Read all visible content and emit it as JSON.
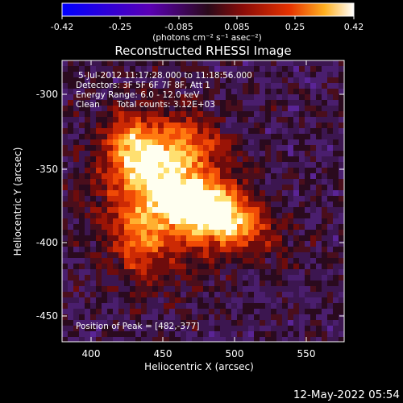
{
  "colorbar": {
    "ticks": [
      "-0.42",
      "-0.25",
      "-0.085",
      "0.085",
      "0.25",
      "0.42"
    ],
    "units": "(photons cm⁻² s⁻¹ asec⁻²)"
  },
  "title": "Reconstructed RHESSI Image",
  "annotations": {
    "time": "5-Jul-2012 11:17:28.000 to 11:18:56.000",
    "detectors": "Detectors: 3F 5F 6F 7F 8F, Att 1",
    "energy": "Energy Range: 6.0 - 12.0 keV",
    "algorithm": "Clean",
    "counts": "Total counts: 3.12E+03",
    "peak": "Position of Peak = [482,-377]"
  },
  "axes": {
    "xlabel": "Heliocentric X (arcsec)",
    "ylabel": "Heliocentric Y (arcsec)",
    "xticks": [
      400,
      450,
      500,
      550
    ],
    "yticks": [
      -300,
      -350,
      -400,
      -450
    ],
    "xlim": [
      380,
      572
    ],
    "ylim": [
      -470,
      -278
    ]
  },
  "footer": {
    "date": "12-May-2022 05:54"
  },
  "colors": {
    "background": "#000000",
    "axes": "#ffffff",
    "colormap": [
      "#0000ff",
      "#6a00c8",
      "#5a1c6e",
      "#3d1a3d",
      "#6a0c10",
      "#c81e0a",
      "#ff6a00",
      "#ffd040",
      "#ffffd8"
    ]
  }
}
